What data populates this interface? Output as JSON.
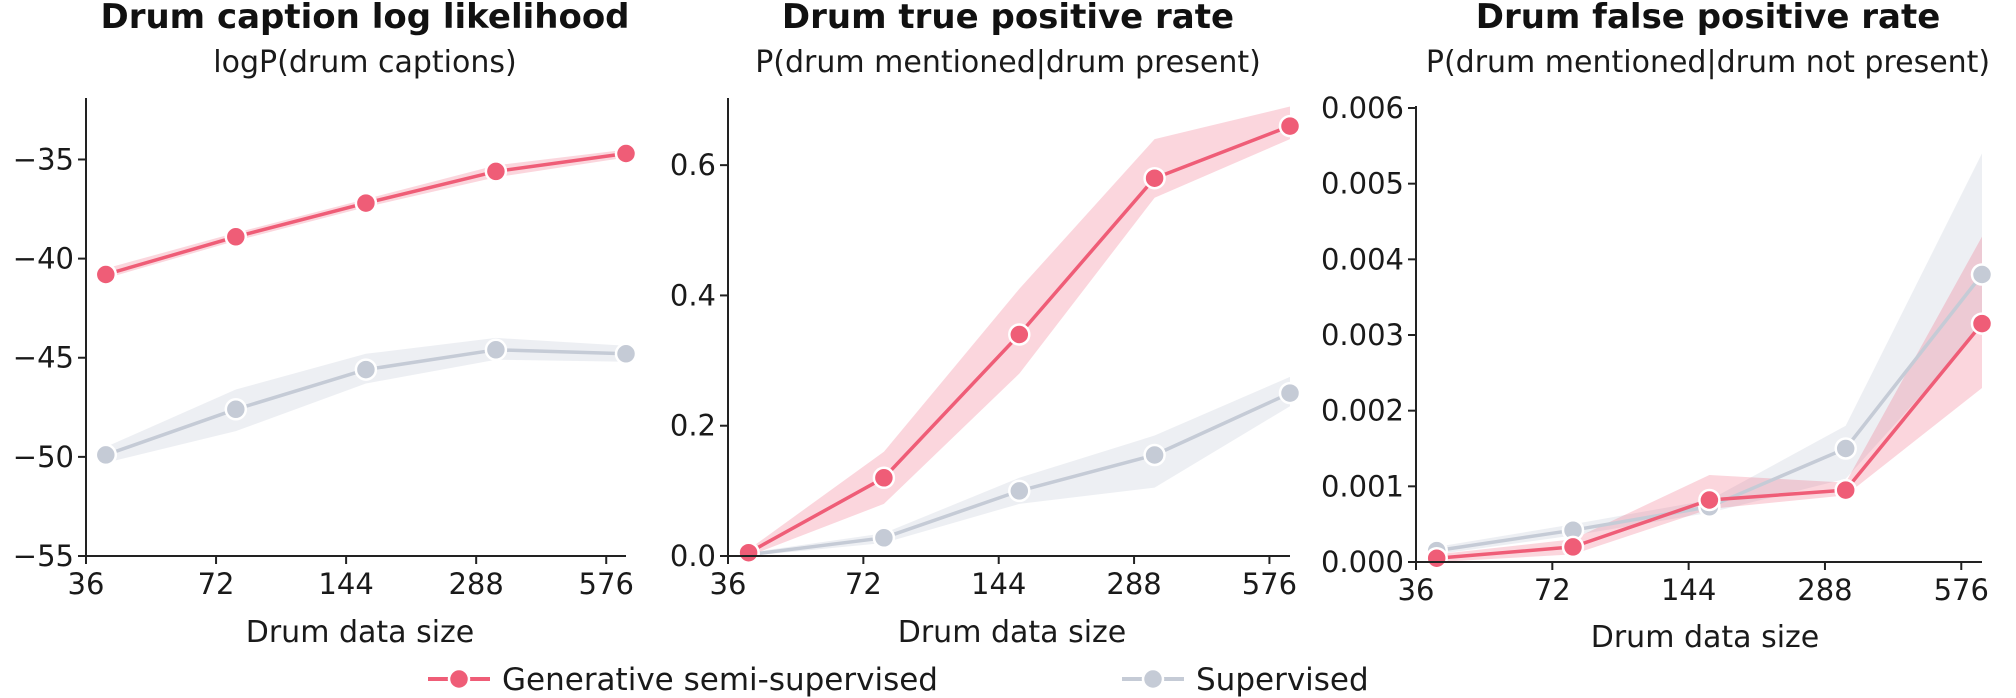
{
  "colors": {
    "generative": "#ef5d77",
    "supervised": "#c5cbd6"
  },
  "legend": {
    "generative": "Generative semi-supervised",
    "supervised": "Supervised"
  },
  "chart_data": [
    {
      "type": "line",
      "title": "Drum caption log likelihood",
      "subtitle": "logP(drum captions)",
      "xlabel": "Drum data size",
      "ylabel": "",
      "x_scale": "log",
      "x": [
        36,
        72,
        144,
        288,
        576
      ],
      "x_ticks": [
        "36",
        "72",
        "144",
        "288",
        "576"
      ],
      "ylim": [
        -55,
        -32
      ],
      "y_ticks": [
        -55,
        -50,
        -45,
        -40,
        -35
      ],
      "y_tick_labels": [
        "−55",
        "−50",
        "−45",
        "−40",
        "−35"
      ],
      "series": [
        {
          "name": "Generative semi-supervised",
          "x": [
            40,
            80,
            160,
            320,
            640
          ],
          "values": [
            -40.8,
            -38.9,
            -37.2,
            -35.6,
            -34.7
          ],
          "lower": [
            -41.0,
            -39.1,
            -37.4,
            -35.9,
            -34.9
          ],
          "upper": [
            -40.5,
            -38.7,
            -37.0,
            -35.3,
            -34.5
          ]
        },
        {
          "name": "Supervised",
          "x": [
            40,
            80,
            160,
            320,
            640
          ],
          "values": [
            -49.9,
            -47.6,
            -45.6,
            -44.6,
            -44.8
          ],
          "lower": [
            -50.3,
            -48.7,
            -46.3,
            -45.1,
            -45.2
          ],
          "upper": [
            -49.5,
            -46.6,
            -44.8,
            -44.0,
            -44.4
          ]
        }
      ]
    },
    {
      "type": "line",
      "title": "Drum true positive rate",
      "subtitle": "P(drum mentioned|drum present)",
      "xlabel": "Drum data size",
      "ylabel": "",
      "x_scale": "log",
      "x": [
        36,
        72,
        144,
        288,
        576
      ],
      "x_ticks": [
        "36",
        "72",
        "144",
        "288",
        "576"
      ],
      "ylim": [
        0,
        0.7
      ],
      "y_ticks": [
        0,
        0.2,
        0.4,
        0.6
      ],
      "y_tick_labels": [
        "0.0",
        "0.2",
        "0.4",
        "0.6"
      ],
      "series": [
        {
          "name": "Generative semi-supervised",
          "x": [
            40,
            80,
            160,
            320,
            640
          ],
          "values": [
            0.005,
            0.12,
            0.34,
            0.58,
            0.66
          ],
          "lower": [
            0.0,
            0.08,
            0.28,
            0.55,
            0.64
          ],
          "upper": [
            0.01,
            0.16,
            0.41,
            0.64,
            0.69
          ]
        },
        {
          "name": "Supervised",
          "x": [
            40,
            80,
            160,
            320,
            640
          ],
          "values": [
            0.002,
            0.028,
            0.1,
            0.155,
            0.25
          ],
          "lower": [
            0.0,
            0.02,
            0.08,
            0.105,
            0.23
          ],
          "upper": [
            0.005,
            0.035,
            0.12,
            0.185,
            0.275
          ]
        }
      ]
    },
    {
      "type": "line",
      "title": "Drum false positive rate",
      "subtitle": "P(drum mentioned|drum not present)",
      "xlabel": "Drum data size",
      "ylabel": "",
      "x_scale": "log",
      "x": [
        36,
        72,
        144,
        288,
        576
      ],
      "x_ticks": [
        "36",
        "72",
        "144",
        "288",
        "576"
      ],
      "ylim": [
        0,
        0.006
      ],
      "y_ticks": [
        0,
        0.001,
        0.002,
        0.003,
        0.004,
        0.005,
        0.006
      ],
      "y_tick_labels": [
        "0.000",
        "0.001",
        "0.002",
        "0.003",
        "0.004",
        "0.005",
        "0.006"
      ],
      "series": [
        {
          "name": "Generative semi-supervised",
          "x": [
            40,
            80,
            160,
            320,
            640
          ],
          "values": [
            5e-05,
            0.0002,
            0.00082,
            0.00095,
            0.00315
          ],
          "lower": [
            0.0,
            0.0001,
            0.0007,
            0.00088,
            0.0023
          ],
          "upper": [
            0.0001,
            0.0003,
            0.00115,
            0.00105,
            0.0043
          ]
        },
        {
          "name": "Supervised",
          "x": [
            40,
            80,
            160,
            320,
            640
          ],
          "values": [
            0.00015,
            0.00042,
            0.00073,
            0.0015,
            0.0038
          ],
          "lower": [
            0.0001,
            0.00035,
            0.00065,
            0.0011,
            0.0031
          ],
          "upper": [
            0.0002,
            0.0005,
            0.00082,
            0.0018,
            0.0054
          ]
        }
      ]
    }
  ]
}
